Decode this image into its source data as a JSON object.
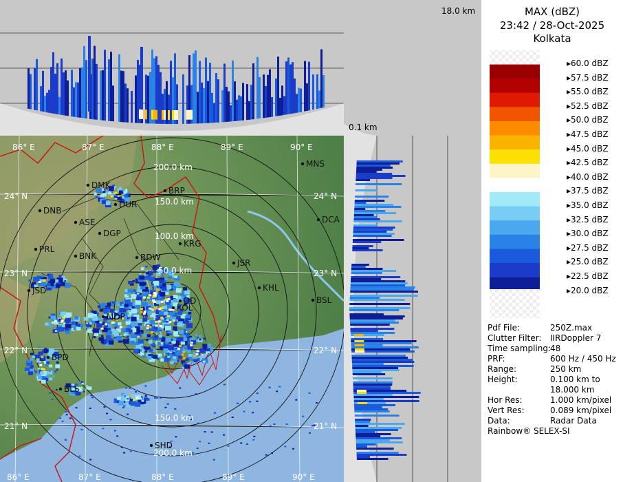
{
  "header": {
    "title": "MAX (dBZ)",
    "datetime": "23:42 / 28-Oct-2025",
    "station": "Kolkata"
  },
  "height_scale": {
    "top": "18.0 km",
    "bottom": "0.1 km"
  },
  "legend": {
    "levels": [
      {
        "label": "60.0 dBZ",
        "color": "checker"
      },
      {
        "label": "57.5 dBZ",
        "color": "#9b0000"
      },
      {
        "label": "55.0 dBZ",
        "color": "#b30000"
      },
      {
        "label": "52.5 dBZ",
        "color": "#e01a00"
      },
      {
        "label": "50.0 dBZ",
        "color": "#f25500"
      },
      {
        "label": "47.5 dBZ",
        "color": "#fb8c00"
      },
      {
        "label": "45.0 dBZ",
        "color": "#fbb300"
      },
      {
        "label": "42.5 dBZ",
        "color": "#fbe000"
      },
      {
        "label": "40.0 dBZ",
        "color": "#fbf5c8"
      },
      {
        "label": "37.5 dBZ",
        "color": "#ffffff"
      },
      {
        "label": "35.0 dBZ",
        "color": "#a0eaf8"
      },
      {
        "label": "32.5 dBZ",
        "color": "#78cdf5"
      },
      {
        "label": "30.0 dBZ",
        "color": "#4aa8ee"
      },
      {
        "label": "27.5 dBZ",
        "color": "#2a82e6"
      },
      {
        "label": "25.0 dBZ",
        "color": "#1a5adc"
      },
      {
        "label": "22.5 dBZ",
        "color": "#1a3cc8"
      },
      {
        "label": "20.0 dBZ",
        "color": "#0e1e96"
      }
    ]
  },
  "info": [
    {
      "key": "Pdf File:",
      "value": "250Z.max"
    },
    {
      "key": "Clutter Filter:",
      "value": "IIRDoppler 7"
    },
    {
      "key": "Time sampling:",
      "value": "48"
    },
    {
      "key": "PRF:",
      "value": "600 Hz / 450 Hz"
    },
    {
      "key": "Range:",
      "value": "250 km"
    },
    {
      "key": "Height:",
      "value": "0.100 km to"
    },
    {
      "key": "",
      "value": "18.000 km"
    },
    {
      "key": "Hor Res:",
      "value": "1.000 km/pixel"
    },
    {
      "key": "Vert Res:",
      "value": "0.089 km/pixel"
    },
    {
      "key": "Data:",
      "value": "Radar Data"
    }
  ],
  "footer": "Rainbow® SELEX-SI",
  "map": {
    "lon_labels": [
      "86° E",
      "87° E",
      "88° E",
      "89° E",
      "90° E"
    ],
    "lat_labels": [
      "24° N",
      "23° N",
      "22° N",
      "21° N"
    ],
    "range_labels": [
      "50.0 km",
      "100.0 km",
      "150.0 km",
      "200.0 km",
      "150.0 km",
      "200.0 km"
    ],
    "cities": [
      "MNS",
      "BRP",
      "DMK",
      "DUR",
      "DNB",
      "ASE",
      "DGP",
      "KRG",
      "DCA",
      "PRL",
      "BNK",
      "BDW",
      "JSR",
      "KHL",
      "BSL",
      "JSD",
      "DD",
      "KOL",
      "MDP",
      "BPD",
      "BLS",
      "SHD"
    ]
  },
  "colors": {
    "land": "#6c8f5a",
    "sea": "#8fb6e0",
    "panel_bg": "#c8c8c8",
    "border": "#d01010"
  }
}
